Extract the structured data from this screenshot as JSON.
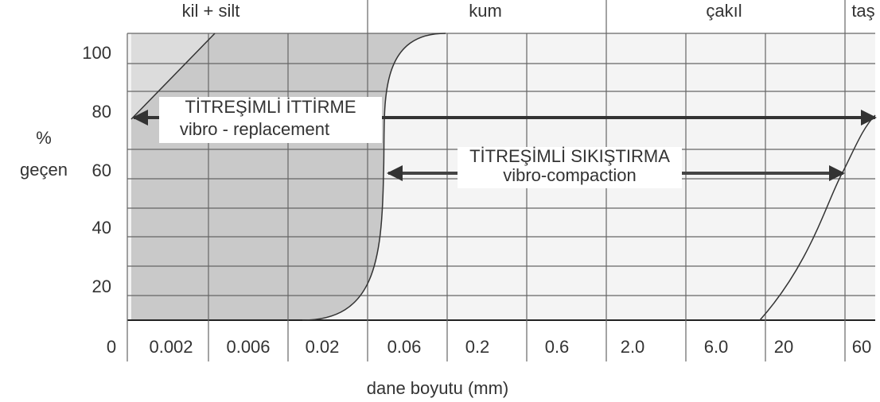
{
  "zones": [
    "kil + silt",
    "kum",
    "çakıl",
    "taş"
  ],
  "y_axis": {
    "label_line1": "%",
    "label_line2": "geçen",
    "ticks": [
      "100",
      "80",
      "60",
      "40",
      "20",
      "0"
    ]
  },
  "x_axis": {
    "label": "dane boyutu (mm)",
    "ticks": [
      "0.002",
      "0.006",
      "0.02",
      "0.06",
      "0.2",
      "0.6",
      "2.0",
      "6.0",
      "20",
      "60"
    ]
  },
  "methods": [
    {
      "title": "TİTREŞİMLİ İTTİRME",
      "subtitle": "vibro - replacement"
    },
    {
      "title": "TİTREŞİMLİ SIKIŞTIRMA",
      "subtitle": "vibro-compaction"
    }
  ]
}
